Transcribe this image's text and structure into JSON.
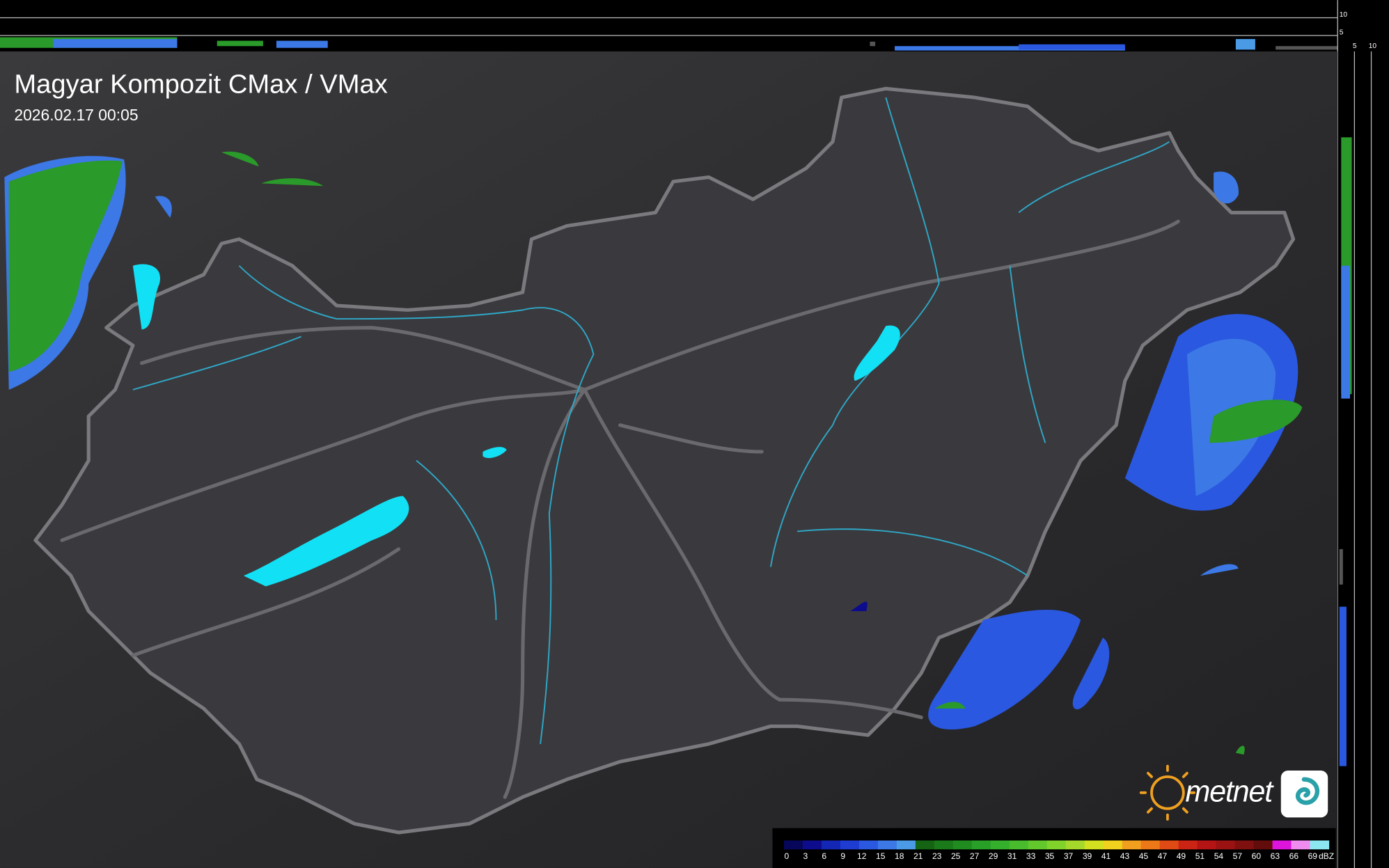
{
  "header": {
    "title": "Magyar Kompozit CMax / VMax",
    "timestamp": "2026.02.17 00:05"
  },
  "profile": {
    "top_ticks": [
      10,
      5
    ],
    "side_ticks": [
      5,
      10
    ]
  },
  "logo": {
    "text": "metnet"
  },
  "legend": {
    "unit": "dBZ",
    "values": [
      0,
      3,
      6,
      9,
      12,
      15,
      18,
      21,
      23,
      25,
      27,
      29,
      31,
      33,
      35,
      37,
      39,
      41,
      43,
      45,
      47,
      49,
      51,
      54,
      57,
      60,
      63,
      66,
      69
    ],
    "colors": [
      "#06065a",
      "#0c0c8c",
      "#1426b4",
      "#1e3cd2",
      "#2a58e0",
      "#3c78e6",
      "#4a9ae6",
      "#146414",
      "#1a7a1a",
      "#208c20",
      "#28a028",
      "#34b02c",
      "#48bc2c",
      "#62c82c",
      "#82d22c",
      "#a6d82c",
      "#d2e020",
      "#f0d21e",
      "#f0a01e",
      "#ec7818",
      "#e04a14",
      "#cc2414",
      "#b41414",
      "#9a1212",
      "#7e1010",
      "#620c0c",
      "#dc14dc",
      "#f08cf0",
      "#8ce6f0"
    ]
  }
}
